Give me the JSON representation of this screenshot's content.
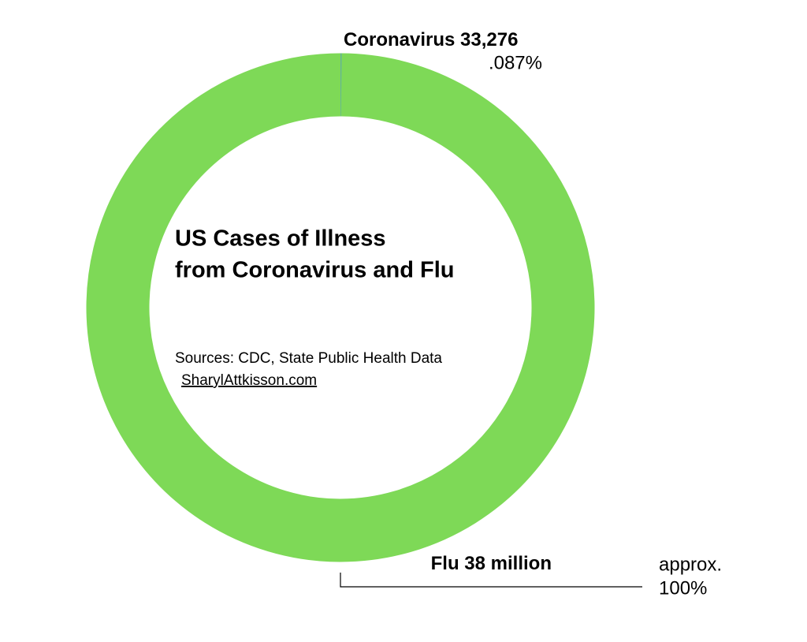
{
  "chart_data": {
    "type": "pie",
    "donut": true,
    "title": [
      "US Cases of Illness",
      "from Coronavirus and Flu"
    ],
    "sources": "Sources: CDC, State Public Health Data",
    "credit": "SharylAttkisson.com",
    "categories": [
      "Coronavirus",
      "Flu"
    ],
    "values": [
      33276,
      38000000
    ],
    "value_labels": [
      "33,276",
      "38 million"
    ],
    "percent_labels": [
      ".087%",
      "100%"
    ],
    "approx_note": "approx.",
    "colors": [
      "#4a90d9",
      "#7ed957"
    ]
  }
}
